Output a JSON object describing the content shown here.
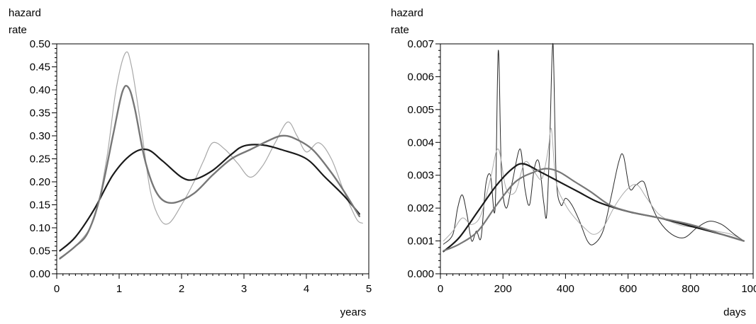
{
  "chart_data": [
    {
      "type": "line",
      "ylabel_lines": [
        "hazard",
        "rate"
      ],
      "xlabel": "years",
      "xlim": [
        0,
        5
      ],
      "ylim": [
        0.0,
        0.5
      ],
      "x_ticks": [
        0,
        1,
        2,
        3,
        4,
        5
      ],
      "x_tick_labels": [
        "0",
        "1",
        "2",
        "3",
        "4",
        "5"
      ],
      "y_ticks": [
        0.0,
        0.05,
        0.1,
        0.15,
        0.2,
        0.25,
        0.3,
        0.35,
        0.4,
        0.45,
        0.5
      ],
      "y_tick_labels": [
        "0.00",
        "0.05",
        "0.10",
        "0.15",
        "0.20",
        "0.25",
        "0.30",
        "0.35",
        "0.40",
        "0.45",
        "0.50"
      ],
      "series": [
        {
          "color": "#1a1a1a",
          "width": 2.2,
          "points": [
            [
              0.05,
              0.05
            ],
            [
              0.3,
              0.08
            ],
            [
              0.6,
              0.14
            ],
            [
              0.9,
              0.215
            ],
            [
              1.2,
              0.26
            ],
            [
              1.45,
              0.27
            ],
            [
              1.7,
              0.245
            ],
            [
              2.0,
              0.21
            ],
            [
              2.2,
              0.205
            ],
            [
              2.5,
              0.225
            ],
            [
              2.8,
              0.26
            ],
            [
              3.0,
              0.278
            ],
            [
              3.3,
              0.28
            ],
            [
              3.6,
              0.27
            ],
            [
              4.0,
              0.25
            ],
            [
              4.3,
              0.21
            ],
            [
              4.6,
              0.17
            ],
            [
              4.85,
              0.13
            ]
          ]
        },
        {
          "color": "#777777",
          "width": 2.4,
          "points": [
            [
              0.05,
              0.033
            ],
            [
              0.3,
              0.06
            ],
            [
              0.5,
              0.09
            ],
            [
              0.7,
              0.17
            ],
            [
              0.9,
              0.3
            ],
            [
              1.05,
              0.395
            ],
            [
              1.15,
              0.405
            ],
            [
              1.25,
              0.36
            ],
            [
              1.4,
              0.255
            ],
            [
              1.55,
              0.19
            ],
            [
              1.7,
              0.16
            ],
            [
              1.9,
              0.155
            ],
            [
              2.2,
              0.175
            ],
            [
              2.5,
              0.215
            ],
            [
              2.8,
              0.25
            ],
            [
              3.1,
              0.27
            ],
            [
              3.4,
              0.29
            ],
            [
              3.6,
              0.3
            ],
            [
              3.8,
              0.295
            ],
            [
              4.1,
              0.27
            ],
            [
              4.4,
              0.22
            ],
            [
              4.6,
              0.18
            ],
            [
              4.85,
              0.125
            ]
          ]
        },
        {
          "color": "#a8a8a8",
          "width": 1.2,
          "points": [
            [
              0.05,
              0.035
            ],
            [
              0.3,
              0.06
            ],
            [
              0.6,
              0.12
            ],
            [
              0.8,
              0.25
            ],
            [
              0.95,
              0.4
            ],
            [
              1.1,
              0.48
            ],
            [
              1.2,
              0.45
            ],
            [
              1.35,
              0.32
            ],
            [
              1.5,
              0.18
            ],
            [
              1.65,
              0.12
            ],
            [
              1.8,
              0.11
            ],
            [
              2.0,
              0.15
            ],
            [
              2.2,
              0.2
            ],
            [
              2.35,
              0.245
            ],
            [
              2.5,
              0.285
            ],
            [
              2.7,
              0.27
            ],
            [
              2.9,
              0.24
            ],
            [
              3.1,
              0.21
            ],
            [
              3.3,
              0.235
            ],
            [
              3.5,
              0.285
            ],
            [
              3.7,
              0.33
            ],
            [
              3.85,
              0.3
            ],
            [
              4.0,
              0.265
            ],
            [
              4.2,
              0.285
            ],
            [
              4.4,
              0.25
            ],
            [
              4.6,
              0.18
            ],
            [
              4.8,
              0.12
            ],
            [
              4.9,
              0.11
            ]
          ]
        }
      ]
    },
    {
      "type": "line",
      "ylabel_lines": [
        "hazard",
        "rate"
      ],
      "xlabel": "days",
      "xlim": [
        0,
        1000
      ],
      "ylim": [
        0.0,
        0.007
      ],
      "x_ticks": [
        0,
        200,
        400,
        600,
        800,
        1000
      ],
      "x_tick_labels": [
        "0",
        "200",
        "400",
        "600",
        "800",
        "1000"
      ],
      "y_ticks": [
        0.0,
        0.001,
        0.002,
        0.003,
        0.004,
        0.005,
        0.006,
        0.007
      ],
      "y_tick_labels": [
        "0.000",
        "0.001",
        "0.002",
        "0.003",
        "0.004",
        "0.005",
        "0.006",
        "0.007"
      ],
      "series": [
        {
          "color": "#1a1a1a",
          "width": 2.2,
          "points": [
            [
              10,
              0.00068
            ],
            [
              60,
              0.0011
            ],
            [
              120,
              0.0019
            ],
            [
              180,
              0.0027
            ],
            [
              230,
              0.0032
            ],
            [
              265,
              0.00335
            ],
            [
              320,
              0.0031
            ],
            [
              380,
              0.0028
            ],
            [
              440,
              0.0025
            ],
            [
              500,
              0.0022
            ],
            [
              560,
              0.002
            ],
            [
              620,
              0.00185
            ],
            [
              700,
              0.0017
            ],
            [
              800,
              0.00145
            ],
            [
              900,
              0.0012
            ],
            [
              970,
              0.001
            ]
          ]
        },
        {
          "color": "#777777",
          "width": 2.2,
          "points": [
            [
              10,
              0.0007
            ],
            [
              60,
              0.0009
            ],
            [
              120,
              0.0013
            ],
            [
              180,
              0.0021
            ],
            [
              240,
              0.0028
            ],
            [
              300,
              0.0031
            ],
            [
              340,
              0.0032
            ],
            [
              380,
              0.0031
            ],
            [
              430,
              0.0028
            ],
            [
              480,
              0.0025
            ],
            [
              540,
              0.0021
            ],
            [
              600,
              0.0019
            ],
            [
              700,
              0.0017
            ],
            [
              800,
              0.0015
            ],
            [
              900,
              0.0012
            ],
            [
              970,
              0.001
            ]
          ]
        },
        {
          "color": "#2a2a2a",
          "width": 1.0,
          "points": [
            [
              10,
              0.0009
            ],
            [
              40,
              0.0012
            ],
            [
              55,
              0.002
            ],
            [
              70,
              0.0024
            ],
            [
              85,
              0.0018
            ],
            [
              100,
              0.001
            ],
            [
              115,
              0.0013
            ],
            [
              130,
              0.0011
            ],
            [
              145,
              0.0027
            ],
            [
              160,
              0.003
            ],
            [
              175,
              0.002
            ],
            [
              185,
              0.0068
            ],
            [
              195,
              0.0031
            ],
            [
              210,
              0.002
            ],
            [
              230,
              0.0028
            ],
            [
              255,
              0.0038
            ],
            [
              270,
              0.0026
            ],
            [
              285,
              0.0021
            ],
            [
              300,
              0.0032
            ],
            [
              315,
              0.0034
            ],
            [
              330,
              0.0022
            ],
            [
              340,
              0.0018
            ],
            [
              350,
              0.0042
            ],
            [
              360,
              0.007
            ],
            [
              370,
              0.003
            ],
            [
              385,
              0.0021
            ],
            [
              400,
              0.0023
            ],
            [
              420,
              0.0021
            ],
            [
              445,
              0.0016
            ],
            [
              470,
              0.001
            ],
            [
              490,
              0.0009
            ],
            [
              520,
              0.0013
            ],
            [
              545,
              0.0023
            ],
            [
              570,
              0.0034
            ],
            [
              585,
              0.0036
            ],
            [
              605,
              0.0026
            ],
            [
              625,
              0.0027
            ],
            [
              650,
              0.0028
            ],
            [
              670,
              0.0022
            ],
            [
              700,
              0.0016
            ],
            [
              740,
              0.0012
            ],
            [
              780,
              0.0011
            ],
            [
              820,
              0.0014
            ],
            [
              860,
              0.0016
            ],
            [
              900,
              0.0015
            ],
            [
              940,
              0.0012
            ],
            [
              970,
              0.001
            ]
          ]
        },
        {
          "color": "#aaaaaa",
          "width": 1.0,
          "points": [
            [
              10,
              0.001
            ],
            [
              40,
              0.0013
            ],
            [
              70,
              0.0017
            ],
            [
              100,
              0.0015
            ],
            [
              130,
              0.0018
            ],
            [
              160,
              0.0029
            ],
            [
              185,
              0.0038
            ],
            [
              210,
              0.0026
            ],
            [
              240,
              0.0025
            ],
            [
              270,
              0.0034
            ],
            [
              300,
              0.0031
            ],
            [
              325,
              0.0029
            ],
            [
              345,
              0.0038
            ],
            [
              355,
              0.0044
            ],
            [
              370,
              0.0028
            ],
            [
              400,
              0.0021
            ],
            [
              430,
              0.0017
            ],
            [
              460,
              0.0014
            ],
            [
              490,
              0.0012
            ],
            [
              520,
              0.0014
            ],
            [
              560,
              0.0021
            ],
            [
              600,
              0.0026
            ],
            [
              630,
              0.0027
            ],
            [
              660,
              0.0023
            ],
            [
              700,
              0.0018
            ],
            [
              760,
              0.0015
            ],
            [
              820,
              0.0014
            ],
            [
              880,
              0.0013
            ],
            [
              930,
              0.0012
            ],
            [
              970,
              0.001
            ]
          ]
        }
      ]
    }
  ]
}
